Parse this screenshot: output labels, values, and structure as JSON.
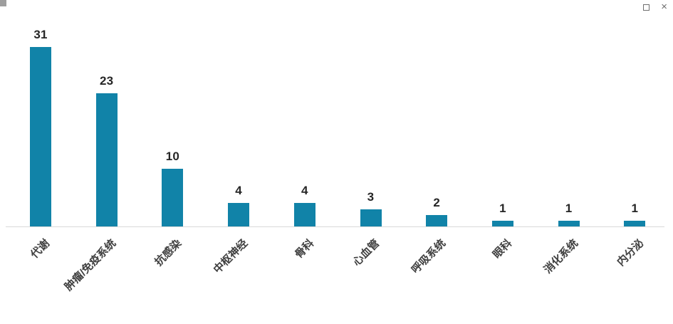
{
  "window": {
    "restore_icon": "restore-window",
    "close_icon": "×"
  },
  "chart_data": {
    "type": "bar",
    "title": "",
    "xlabel": "",
    "ylabel": "",
    "categories": [
      "代谢",
      "肿瘤/免疫系统",
      "抗感染",
      "中枢神经",
      "骨科",
      "心血管",
      "呼吸系统",
      "眼科",
      "消化系统",
      "内分泌"
    ],
    "values": [
      31,
      23,
      10,
      4,
      4,
      3,
      2,
      1,
      1,
      1
    ],
    "value_labels_shown": true,
    "ylim": [
      0,
      31
    ],
    "grid": false,
    "legend": "none",
    "bar_color": "#1183a8",
    "value_label_color": "#262626",
    "category_label_color": "#404040",
    "axis_line_color": "#d9d9d9"
  }
}
